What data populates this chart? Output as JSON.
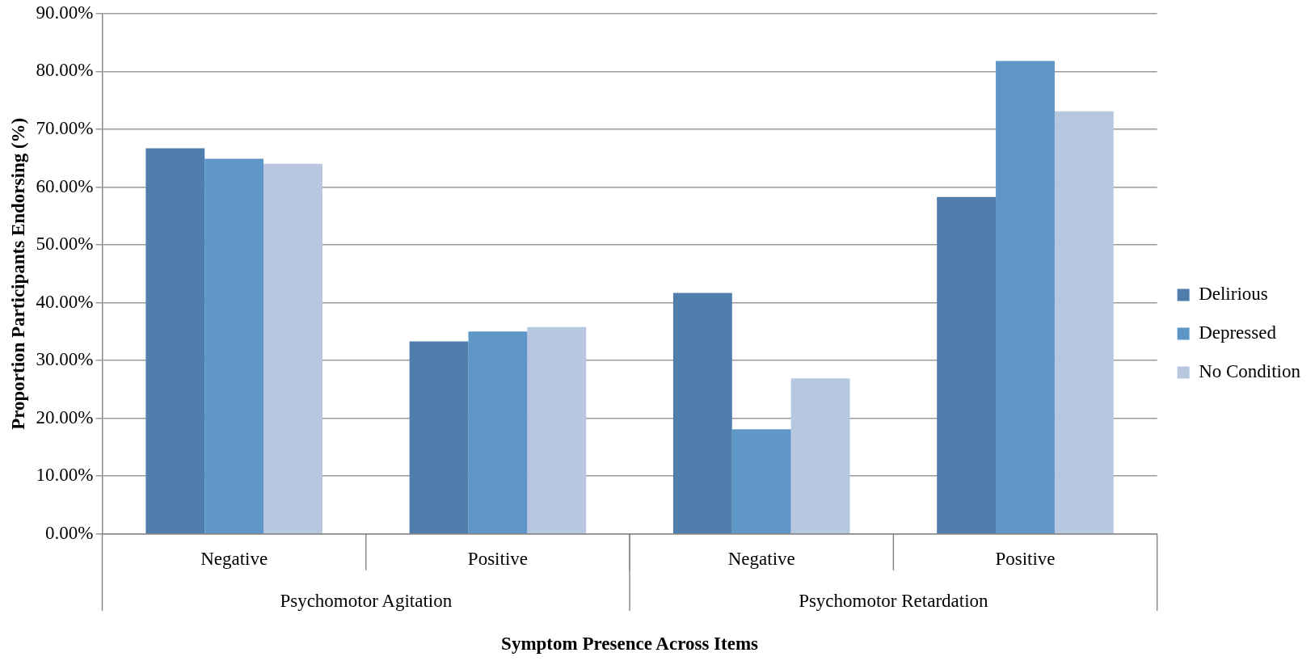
{
  "chart_data": {
    "type": "bar",
    "xlabel": "Symptom Presence Across Items",
    "ylabel": "Proportion Participants Endorsing (%)",
    "categories": [
      "Negative",
      "Positive",
      "Negative",
      "Positive"
    ],
    "annotations": [
      "Psychomotor Agitation",
      "Psychomotor Retardation"
    ],
    "series": [
      {
        "name": "Delirious",
        "color": "#4f7eac",
        "values": [
          66.7,
          33.3,
          41.7,
          58.3
        ]
      },
      {
        "name": "Depressed",
        "color": "#5f96c8",
        "values": [
          64.9,
          35.0,
          18.1,
          81.8
        ]
      },
      {
        "name": "No Condition",
        "color": "#b8c7e0",
        "values": [
          64.0,
          35.8,
          26.9,
          73.1
        ]
      }
    ],
    "ylim": [
      0,
      90
    ],
    "yticks": [
      {
        "value": 0,
        "label": "0.00%"
      },
      {
        "value": 10,
        "label": "10.00%"
      },
      {
        "value": 20,
        "label": "20.00%"
      },
      {
        "value": 30,
        "label": "30.00%"
      },
      {
        "value": 40,
        "label": "40.00%"
      },
      {
        "value": 50,
        "label": "50.00%"
      },
      {
        "value": 60,
        "label": "60.00%"
      },
      {
        "value": 70,
        "label": "70.00%"
      },
      {
        "value": 80,
        "label": "80.00%"
      },
      {
        "value": 90,
        "label": "90.00%"
      }
    ],
    "grid": "y",
    "legend": "right"
  }
}
